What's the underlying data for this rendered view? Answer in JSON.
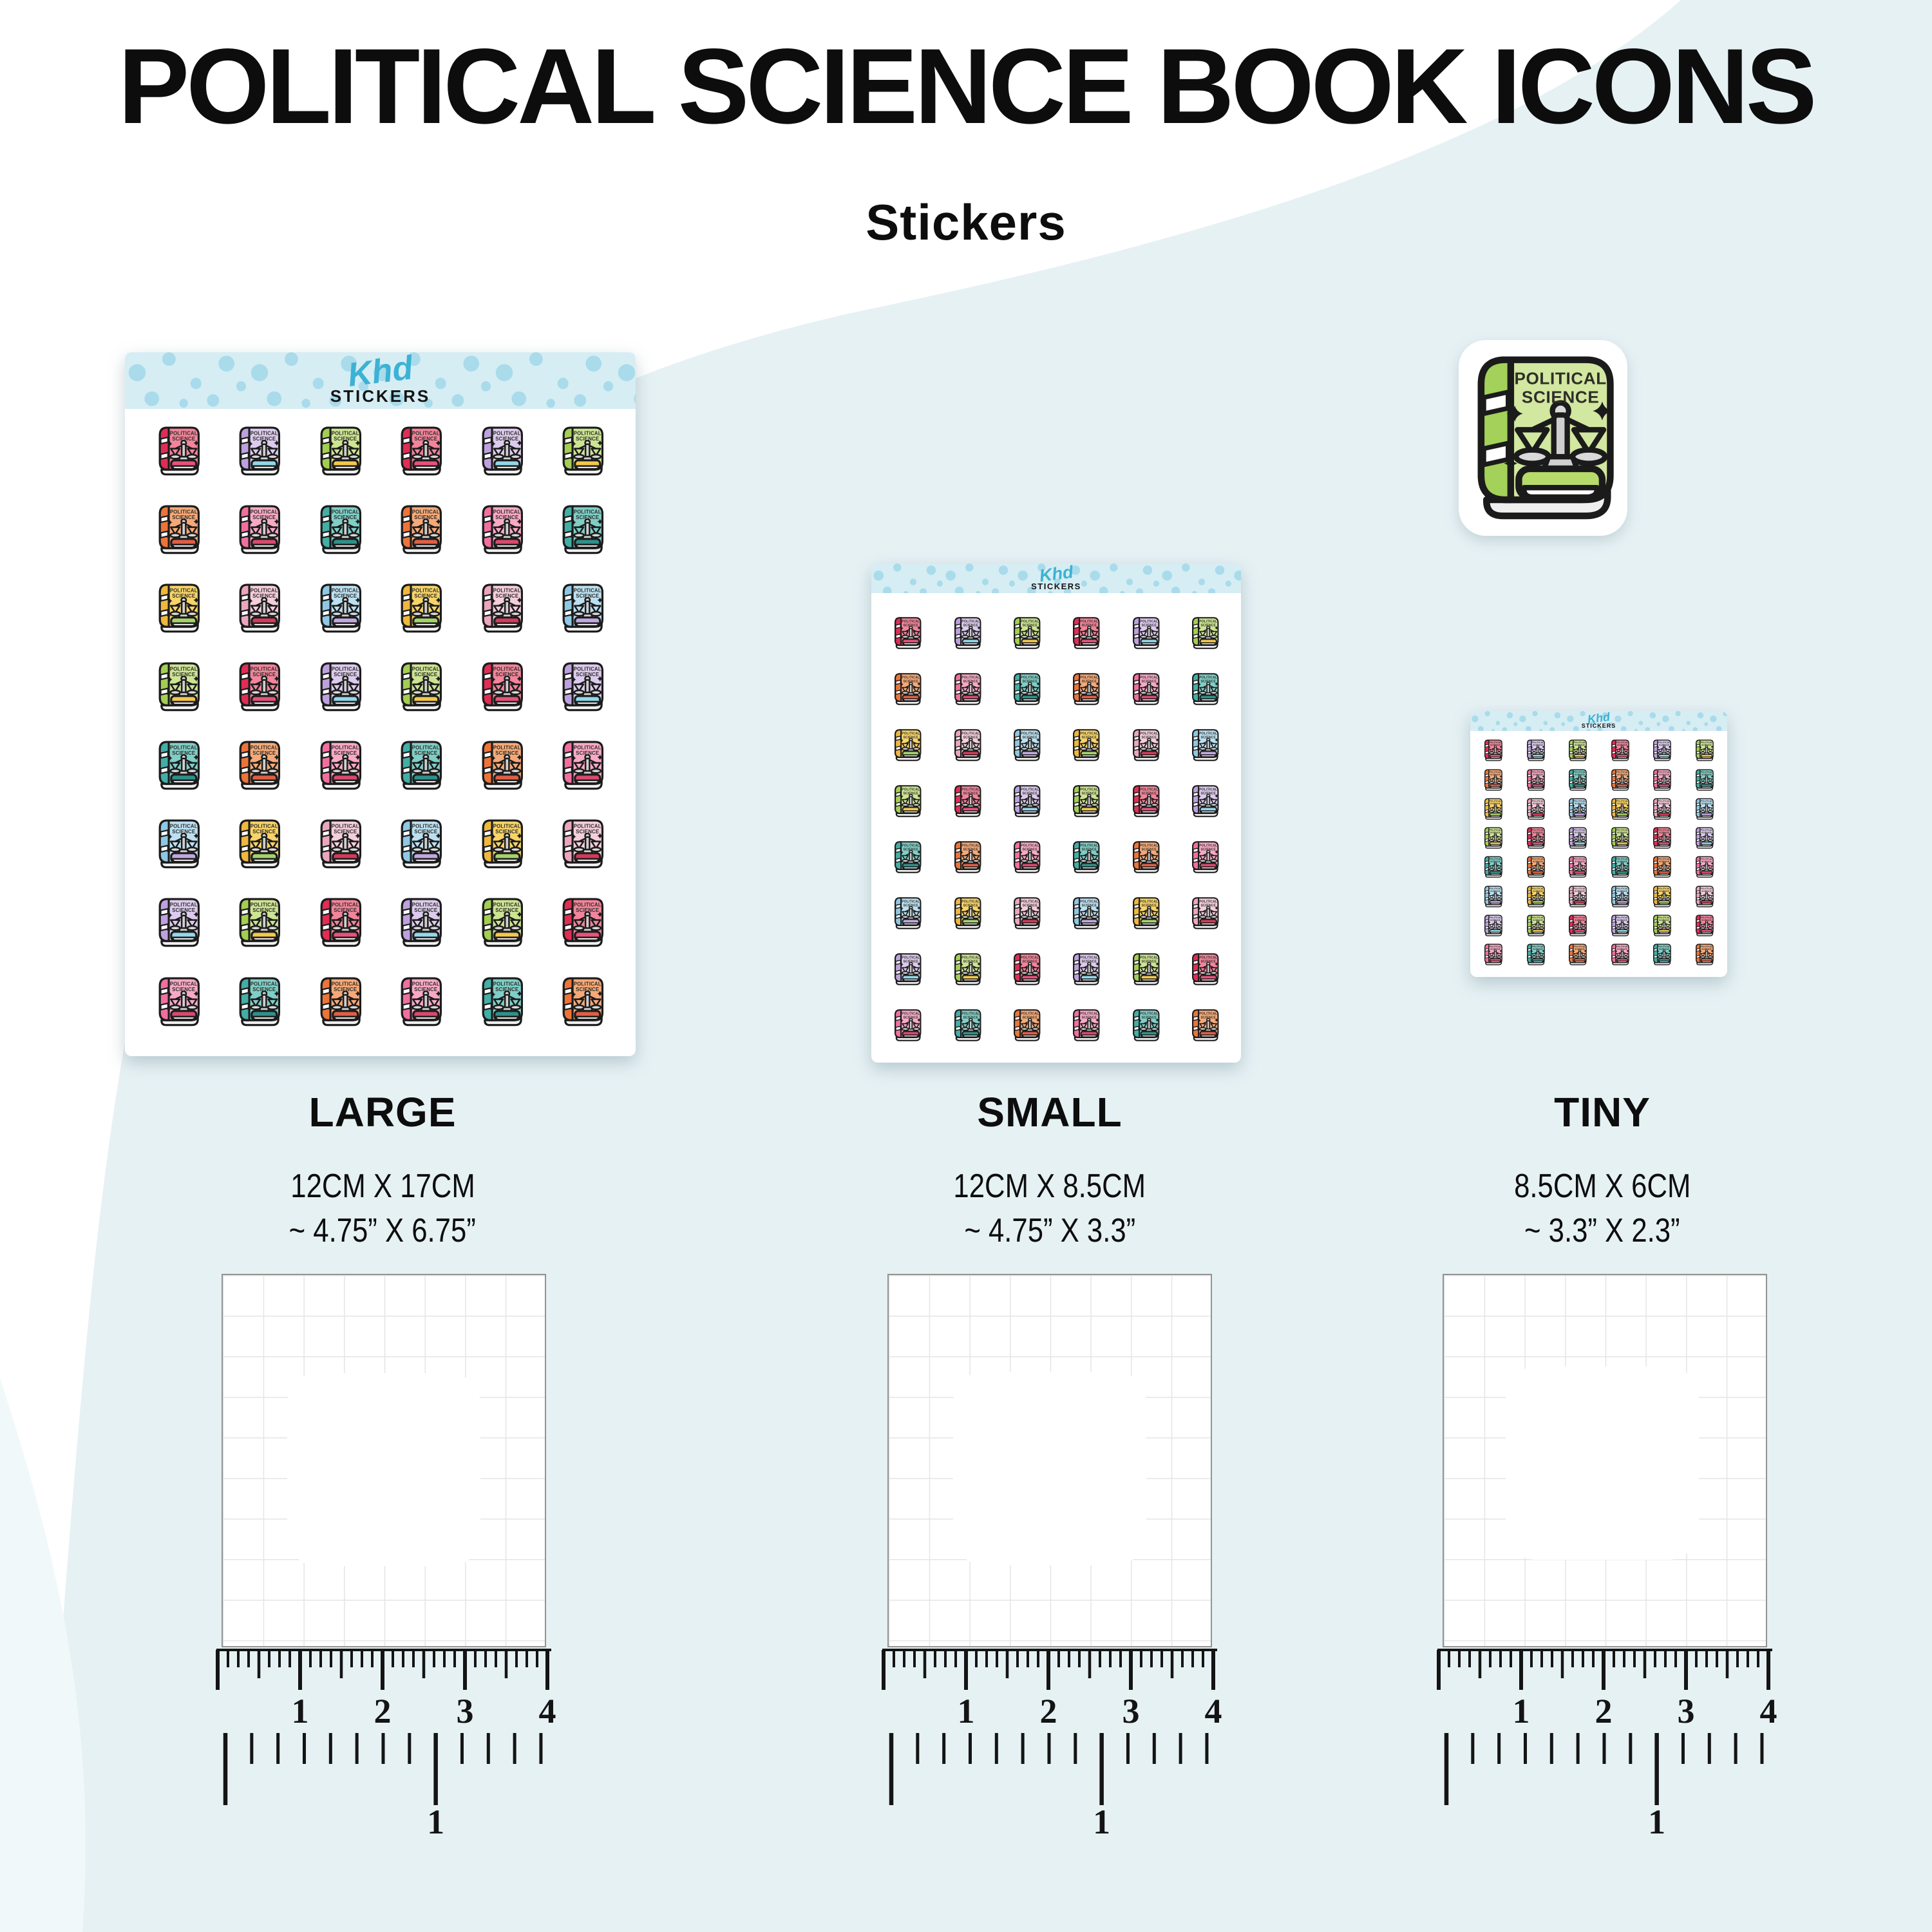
{
  "header": {
    "title": "POLITICAL SCIENCE BOOK ICONS",
    "subtitle": "Stickers"
  },
  "brand": {
    "logo_script": "Khd",
    "logo_sub": "STICKERS"
  },
  "sticker_text": {
    "line1": "POLITICAL",
    "line2": "SCIENCE"
  },
  "sizes": [
    {
      "id": "large",
      "label": "LARGE",
      "dim_cm": "12CM X 17CM",
      "dim_in": "~ 4.75” X 6.75”",
      "cols": 6,
      "rows": 8,
      "count": 48
    },
    {
      "id": "small",
      "label": "SMALL",
      "dim_cm": "12CM X 8.5CM",
      "dim_in": "~ 4.75” X 3.3”",
      "cols": 6,
      "rows": 8,
      "count": 48
    },
    {
      "id": "tiny",
      "label": "TINY",
      "dim_cm": "8.5CM X 6CM",
      "dim_in": "~ 3.3” X 2.3”",
      "cols": 6,
      "rows": 8,
      "count": 48
    }
  ],
  "ruler": {
    "inch_numbers": [
      "1",
      "2",
      "3",
      "4"
    ],
    "cm_number": "1"
  },
  "palette": [
    {
      "name": "berry-red",
      "cover": "#F2849B",
      "spine": "#E02D55",
      "accent": "#E8527A"
    },
    {
      "name": "lavender",
      "cover": "#DCCBEE",
      "spine": "#BDA1DE",
      "accent": "#93D7EA"
    },
    {
      "name": "green",
      "cover": "#CDE493",
      "spine": "#A3CE52",
      "accent": "#F2C84B"
    },
    {
      "name": "orange",
      "cover": "#F6A978",
      "spine": "#ED7439",
      "accent": "#DE5F45"
    },
    {
      "name": "pink",
      "cover": "#F8A9C6",
      "spine": "#F16F9F",
      "accent": "#D84A6E"
    },
    {
      "name": "teal",
      "cover": "#7FCEC7",
      "spine": "#42AEA5",
      "accent": "#2F9089"
    },
    {
      "name": "yellow",
      "cover": "#F8D468",
      "spine": "#EFB73C",
      "accent": "#A5D46B"
    },
    {
      "name": "light-pink",
      "cover": "#F4CEDC",
      "spine": "#EBA6BD",
      "accent": "#D53A58"
    },
    {
      "name": "light-blue",
      "cover": "#BCE0F2",
      "spine": "#8EC8E4",
      "accent": "#C2A8E0"
    }
  ],
  "row_pattern": [
    [
      0,
      1,
      2
    ],
    [
      3,
      4,
      5
    ],
    [
      6,
      7,
      8
    ],
    [
      2,
      0,
      1
    ],
    [
      5,
      3,
      4
    ],
    [
      8,
      6,
      7
    ],
    [
      1,
      2,
      0
    ],
    [
      4,
      5,
      3
    ]
  ],
  "single_sticker_color": {
    "cover": "#D2E7A0",
    "spine": "#A3D159",
    "accent": "#B7DB6B"
  },
  "colors": {
    "background_blob": "#E6F1F4",
    "corner_wedge": "#F1F8FA",
    "banner_bg": "#D6EDF4",
    "banner_dot": "#A9DBEA",
    "logo": "#3CB2D4",
    "panel_grid_line": "#E5E5E5",
    "panel_border": "#939393",
    "ink": "#0D0D0D"
  }
}
